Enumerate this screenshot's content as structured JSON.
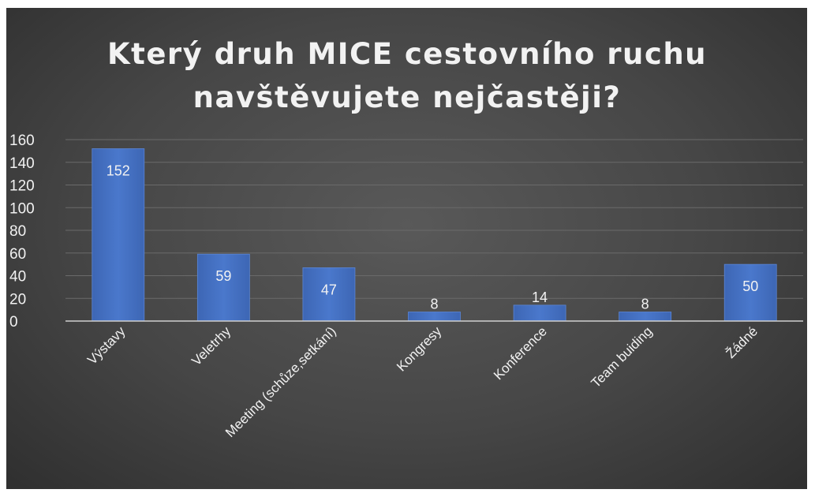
{
  "chart_data": {
    "type": "bar",
    "title_lines": [
      "Který druh MICE cestovního ruchu",
      "navštěvujete nejčastěji?"
    ],
    "categories": [
      "Výstavy",
      "Veletrhy",
      "Meeting (schůze,setkání)",
      "Kongresy",
      "Konference",
      "Team buiding",
      "Žádné"
    ],
    "values": [
      152,
      59,
      47,
      8,
      14,
      8,
      50
    ],
    "ylim": [
      0,
      160
    ],
    "yticks": [
      0,
      20,
      40,
      60,
      80,
      100,
      120,
      140,
      160
    ],
    "grid": true,
    "legend": "none",
    "bar_color": "#4472c4",
    "background_color": "#404040",
    "text_color": "#f2f2f2"
  }
}
